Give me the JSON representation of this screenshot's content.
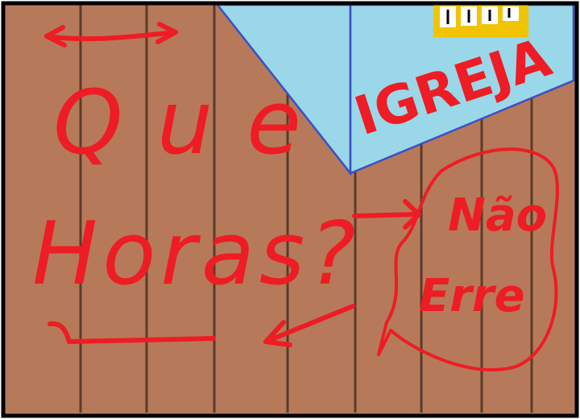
{
  "drawing": {
    "sign_text": "IGREJA",
    "graffiti_line1": "Que",
    "graffiti_line2": "Horas?",
    "bubble_line1": "Não",
    "bubble_line2": "Erre"
  },
  "colors": {
    "wood": "#b67a5a",
    "plank_line": "#5c3b2a",
    "sky": "#9ad7e8",
    "building_edge": "#3b4fc4",
    "paint": "#ee1c24",
    "clock_frame": "#f2c400",
    "border": "#000000"
  },
  "icons": {
    "clock_tower": "clock-dials-icon",
    "arrows": "arrow-icon"
  }
}
